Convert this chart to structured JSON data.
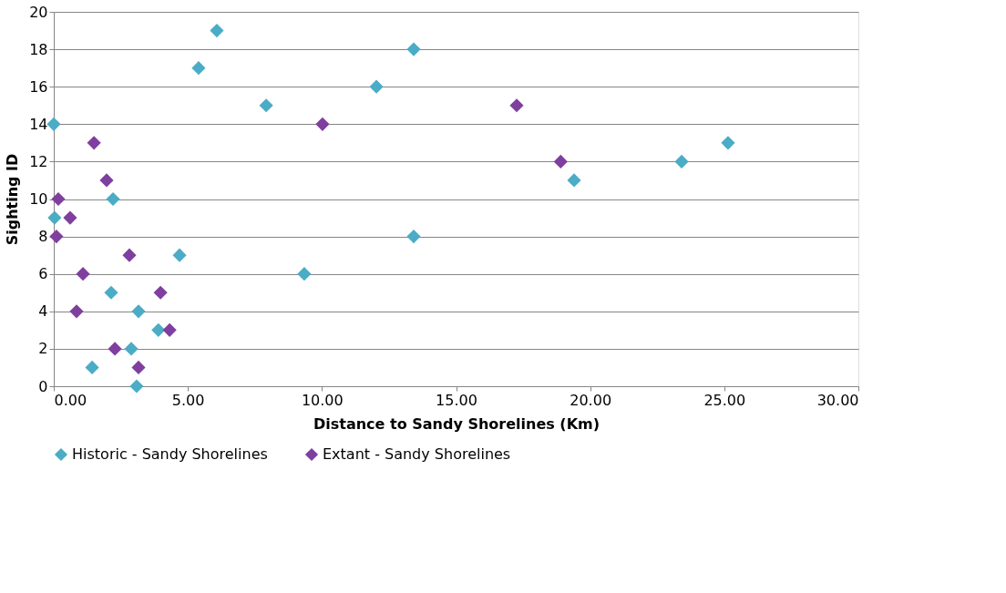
{
  "chart_data": {
    "type": "scatter",
    "xlabel": "Distance to Sandy Shorelines (Km)",
    "ylabel": "Sighting ID",
    "xlim": [
      0,
      30
    ],
    "xticks": [
      {
        "value": 0,
        "label": "0.00"
      },
      {
        "value": 5,
        "label": "5.00"
      },
      {
        "value": 10,
        "label": "10.00"
      },
      {
        "value": 15,
        "label": "15.00"
      },
      {
        "value": 20,
        "label": "20.00"
      },
      {
        "value": 25,
        "label": "25.00"
      },
      {
        "value": 30,
        "label": "30.00"
      }
    ],
    "ylim": [
      0,
      20
    ],
    "yticks": [
      0,
      2,
      4,
      6,
      8,
      10,
      12,
      14,
      16,
      18,
      20
    ],
    "grid": "y",
    "legend": "bottom",
    "marker": "diamond",
    "series": [
      {
        "name": "Historic - Sandy Shorelines",
        "color": "#4bacc6",
        "x": [
          0.0,
          0.03,
          1.43,
          2.21,
          2.14,
          2.89,
          3.09,
          3.16,
          3.9,
          4.69,
          5.4,
          6.08,
          7.92,
          9.34,
          12.03,
          13.42,
          13.42,
          19.4,
          23.41,
          25.14
        ],
        "values": [
          14,
          9,
          1,
          10,
          5,
          2,
          0,
          4,
          3,
          7,
          17,
          19,
          15,
          6,
          16,
          18,
          8,
          11,
          12,
          13
        ]
      },
      {
        "name": "Extant - Sandy Shorelines",
        "color": "#7f3f9f",
        "x": [
          0.1,
          0.17,
          0.61,
          0.85,
          1.09,
          1.5,
          1.97,
          2.28,
          2.82,
          3.16,
          3.98,
          4.32,
          10.02,
          17.26,
          18.9
        ],
        "values": [
          8,
          10,
          9,
          4,
          6,
          13,
          11,
          2,
          7,
          1,
          5,
          3,
          14,
          15,
          12
        ]
      }
    ]
  }
}
